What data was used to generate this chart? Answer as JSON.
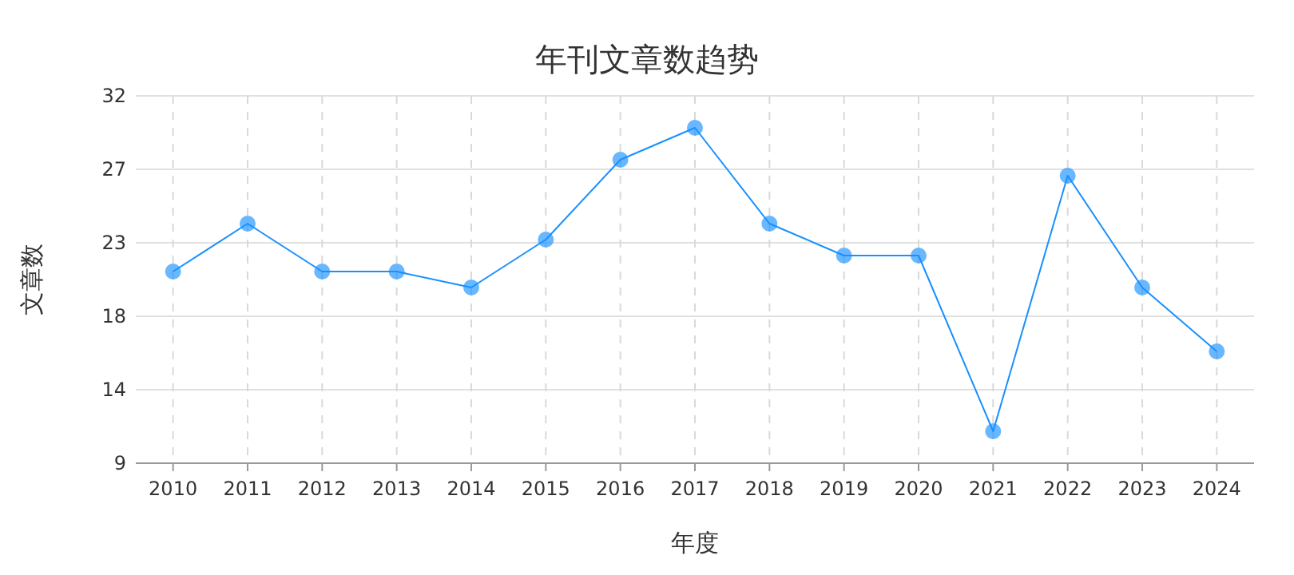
{
  "chart_data": {
    "type": "line",
    "title": "年刊文章数趋势",
    "xlabel": "年度",
    "ylabel": "文章数",
    "categories": [
      "2010",
      "2011",
      "2012",
      "2013",
      "2014",
      "2015",
      "2016",
      "2017",
      "2018",
      "2019",
      "2020",
      "2021",
      "2022",
      "2023",
      "2024"
    ],
    "series": [
      {
        "color": "#1890ff",
        "values": [
          21,
          24,
          21,
          21,
          20,
          23,
          28,
          30,
          24,
          22,
          22,
          11,
          27,
          20,
          16
        ]
      }
    ],
    "ylim": [
      9,
      32
    ],
    "yticks": [
      9,
      {
        "value": 13.6,
        "label": "14"
      },
      {
        "value": 18.2,
        "label": "18"
      },
      {
        "value": 22.8,
        "label": "23"
      },
      {
        "value": 27.4,
        "label": "27"
      },
      32
    ],
    "grid": true,
    "marker": "circle",
    "line_style": "solid"
  }
}
